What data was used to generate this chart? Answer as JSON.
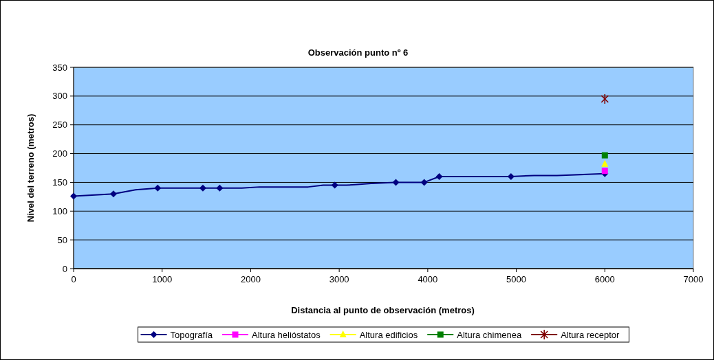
{
  "chart_data": {
    "type": "line",
    "title": "Observación punto nº 6",
    "xlabel": "Distancia al punto de observación (metros)",
    "ylabel": "Nivel del terreno (metros)",
    "xlim": [
      0,
      7000
    ],
    "xticks": [
      0,
      1000,
      2000,
      3000,
      4000,
      5000,
      6000,
      7000
    ],
    "ylim": [
      0,
      350
    ],
    "yticks": [
      0,
      50,
      100,
      150,
      200,
      250,
      300,
      350
    ],
    "grid": "y",
    "legend": "bottom",
    "series": [
      {
        "color": "#000080",
        "marker": "none",
        "x": [
          0,
          450,
          700,
          950,
          1460,
          1650,
          1900,
          2100,
          2650,
          2820,
          2950,
          3080,
          3180,
          3360,
          3640,
          3960,
          4130,
          4940,
          5200,
          5460,
          6000
        ],
        "values": [
          126,
          130,
          137,
          140,
          140,
          140,
          140,
          142,
          142,
          145,
          145,
          145,
          146,
          148,
          150,
          150,
          160,
          160,
          162,
          162,
          165
        ]
      },
      {
        "name": "Topografía",
        "type": "scatter",
        "color": "#000080",
        "marker": "diamond",
        "x": [
          0,
          450,
          950,
          1460,
          1650,
          2950,
          3640,
          3960,
          4130,
          4940,
          6000
        ],
        "values": [
          126,
          130,
          140,
          140,
          140,
          145,
          150,
          150,
          160,
          160,
          165
        ]
      },
      {
        "name": "Altura helióstatos",
        "type": "scatter",
        "color": "#ff00ff",
        "marker": "square",
        "x": [
          6000
        ],
        "values": [
          170
        ]
      },
      {
        "name": "Altura edificios",
        "type": "scatter",
        "color": "#ffff00",
        "marker": "triangle",
        "x": [
          6000
        ],
        "values": [
          182
        ]
      },
      {
        "name": "Altura chimenea",
        "type": "scatter",
        "color": "#008000",
        "marker": "square",
        "x": [
          6000
        ],
        "values": [
          197
        ]
      },
      {
        "name": "Altura receptor",
        "type": "scatter",
        "color": "#800000",
        "marker": "cross",
        "x": [
          6000
        ],
        "values": [
          295
        ]
      }
    ]
  }
}
